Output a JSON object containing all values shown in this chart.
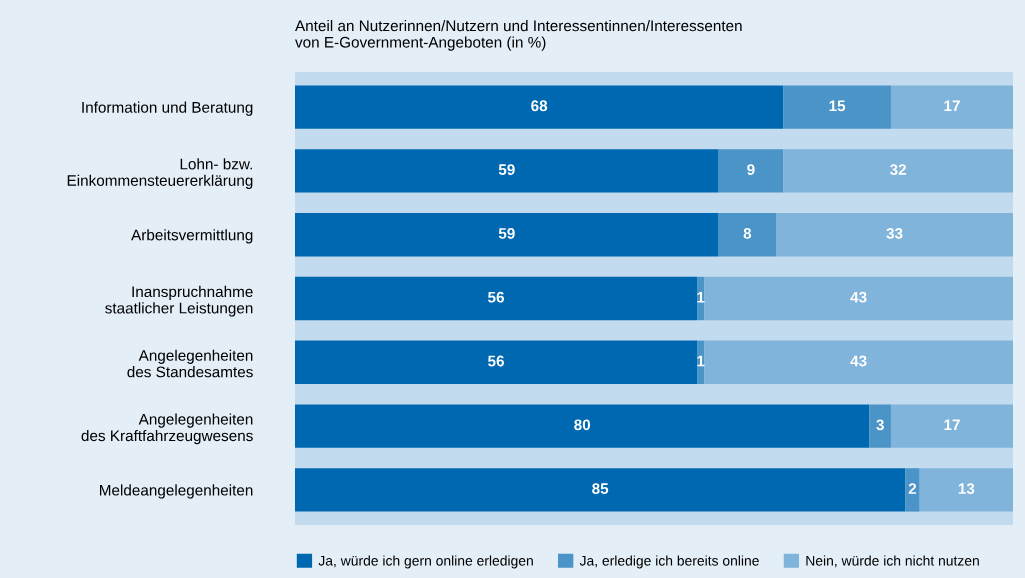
{
  "chart_data": {
    "type": "bar",
    "orientation": "horizontal",
    "stacked": true,
    "data_labels": true,
    "legend": "bottom",
    "grid": false,
    "tick_labels": "y",
    "bands": [
      {
        "axis": "x",
        "from": 0,
        "to": 100,
        "color": "#c3dbee"
      }
    ],
    "title": "Anteil an Nutzerinnen/Nutzern und Interessentinnen/Interessenten\nvon E-Government-Angeboten (in %)",
    "categories": [
      "Information und Beratung",
      "Lohn- bzw.\nEinkommensteuererklärung",
      "Arbeitsvermittlung",
      "Inanspruchnahme\nstaatlicher Leistungen",
      "Angelegenheiten\ndes Standesamtes",
      "Angelegenheiten\ndes Kraftfahrzeugwesens",
      "Meldeangelegenheiten"
    ],
    "series": [
      {
        "name": "Ja, würde ich gern online erledigen",
        "color": "#0068b0",
        "values": [
          68,
          59,
          59,
          56,
          56,
          80,
          85
        ]
      },
      {
        "name": "Ja, erledige ich bereits online",
        "color": "#4a94c8",
        "values": [
          15,
          9,
          8,
          1,
          1,
          3,
          2
        ]
      },
      {
        "name": "Nein, würde ich nicht nutzen",
        "color": "#80b4da",
        "values": [
          17,
          32,
          33,
          43,
          43,
          17,
          13
        ]
      }
    ]
  }
}
